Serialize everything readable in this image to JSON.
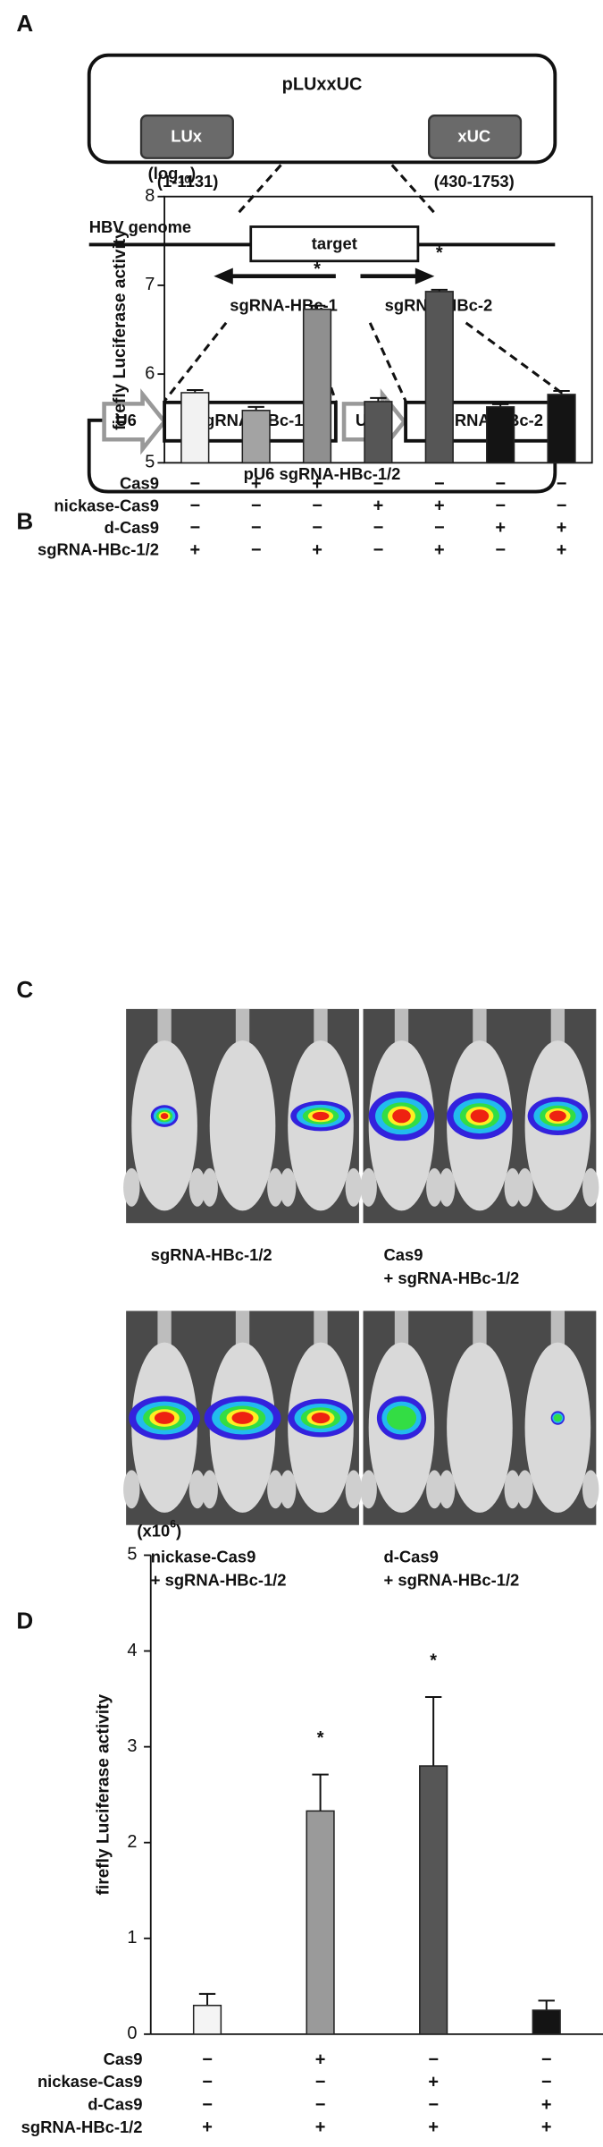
{
  "panel_labels": [
    "A",
    "B",
    "C",
    "D"
  ],
  "diagram": {
    "plasmid": "pLUxxUC",
    "lux": "LUx",
    "xuc": "xUC",
    "lux_range": "(1-1131)",
    "xuc_range": "(430-1753)",
    "genome": "HBV genome",
    "target": "target",
    "sg1": "sgRNA-HBc-1",
    "sg2": "sgRNA-HBc-2",
    "u6": "U6",
    "vector": "pU6 sgRNA-HBc-1/2"
  },
  "imaging": {
    "captions": [
      [
        "sgRNA-HBc-1/2"
      ],
      [
        "Cas9",
        "+ sgRNA-HBc-1/2"
      ],
      [
        "nickase-Cas9",
        "+ sgRNA-HBc-1/2"
      ],
      [
        "d-Cas9",
        "+ sgRNA-HBc-1/2"
      ]
    ]
  },
  "chart_data": [
    {
      "type": "bar",
      "y_label": "firefly Luciferase activity",
      "unit": {
        "text": "(log",
        "script": "10",
        "tail": ")",
        "script_kind": "sub"
      },
      "ylim": [
        5,
        8
      ],
      "yticks": [
        5,
        6,
        7,
        8
      ],
      "values": [
        5.79,
        5.59,
        6.73,
        5.69,
        6.93,
        5.63,
        5.77
      ],
      "errors": [
        0.03,
        0.04,
        0.04,
        0.04,
        0.02,
        0.03,
        0.04
      ],
      "colors": [
        "#f2f2f2",
        "#a3a3a3",
        "#8f8f8f",
        "#565656",
        "#565656",
        "#141414",
        "#141414"
      ],
      "frame": true,
      "annotations": [
        {
          "index": 2,
          "text": "*"
        },
        {
          "index": 4,
          "text": "*"
        }
      ],
      "conditions": [
        {
          "name": "Cas9",
          "marks": [
            "−",
            "+",
            "+",
            "−",
            "−",
            "−",
            "−"
          ]
        },
        {
          "name": "nickase-Cas9",
          "marks": [
            "−",
            "−",
            "−",
            "+",
            "+",
            "−",
            "−"
          ]
        },
        {
          "name": "d-Cas9",
          "marks": [
            "−",
            "−",
            "−",
            "−",
            "−",
            "+",
            "+"
          ]
        },
        {
          "name": "sgRNA-HBc-1/2",
          "marks": [
            "+",
            "−",
            "+",
            "−",
            "+",
            "−",
            "+"
          ]
        }
      ]
    },
    {
      "type": "bar",
      "y_label": "firefly Luciferase activity",
      "unit": {
        "text": "(x10",
        "script": "6",
        "tail": ")",
        "script_kind": "sup"
      },
      "ylim": [
        0,
        5
      ],
      "yticks": [
        0,
        1,
        2,
        3,
        4,
        5
      ],
      "values": [
        0.3,
        2.33,
        2.8,
        0.25
      ],
      "errors": [
        0.12,
        0.38,
        0.72,
        0.1
      ],
      "colors": [
        "#f4f4f4",
        "#9a9a9a",
        "#565656",
        "#141414"
      ],
      "frame": false,
      "annotations": [
        {
          "index": 1,
          "text": "*"
        },
        {
          "index": 2,
          "text": "*"
        }
      ],
      "conditions": [
        {
          "name": "Cas9",
          "marks": [
            "−",
            "+",
            "−",
            "−"
          ]
        },
        {
          "name": "nickase-Cas9",
          "marks": [
            "−",
            "−",
            "+",
            "−"
          ]
        },
        {
          "name": "d-Cas9",
          "marks": [
            "−",
            "−",
            "−",
            "+"
          ]
        },
        {
          "name": "sgRNA-HBc-1/2",
          "marks": [
            "+",
            "+",
            "+",
            "+"
          ]
        }
      ]
    }
  ]
}
